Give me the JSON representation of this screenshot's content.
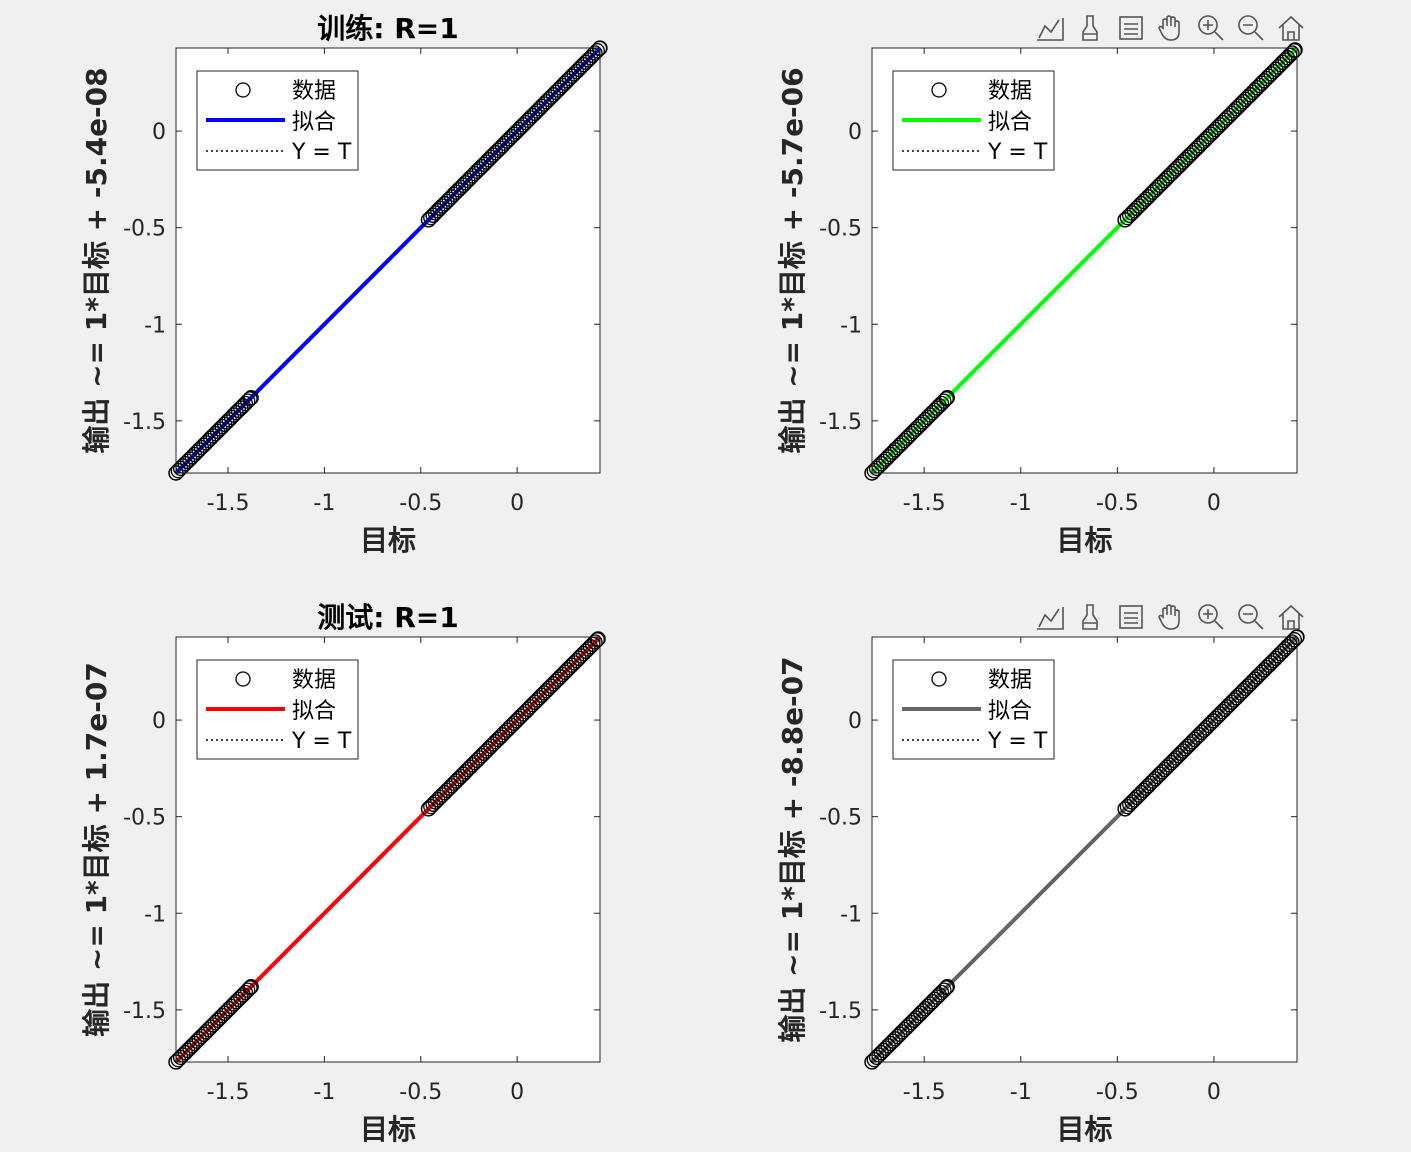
{
  "toolbar": {
    "icons": [
      "data-tips-icon",
      "brush-icon",
      "legend-toggle-icon",
      "pan-hand-icon",
      "zoom-in-icon",
      "zoom-out-icon",
      "home-icon"
    ]
  },
  "chart_data": [
    {
      "type": "scatter",
      "title": "训练: R=1",
      "xlabel": "目标",
      "ylabel": "输出 ~= 1*目标 + -5.4e-08",
      "xlim": [
        -1.77,
        0.43
      ],
      "ylim": [
        -1.77,
        0.43
      ],
      "xticks": [
        -1.5,
        -1,
        -0.5,
        0
      ],
      "xtick_labels": [
        "-1.5",
        "-1",
        "-0.5",
        "0"
      ],
      "yticks": [
        -1.5,
        -1,
        -0.5,
        0
      ],
      "ytick_labels": [
        "-1.5",
        "-1",
        "-0.5",
        "0"
      ],
      "grid": false,
      "legend": {
        "position": "top-left",
        "entries": [
          "数据",
          "拟合",
          "Y = T"
        ]
      },
      "fit": {
        "slope": 1,
        "intercept": -5.4e-08,
        "color": "#0000ff"
      },
      "data_clusters": [
        {
          "x_min": -1.77,
          "x_max": -1.38
        },
        {
          "x_min": -0.46,
          "x_max": 0.43
        }
      ],
      "toolbar": false
    },
    {
      "type": "scatter",
      "title": "",
      "xlabel": "目标",
      "ylabel": "输出 ~= 1*目标 + -5.7e-06",
      "xlim": [
        -1.77,
        0.43
      ],
      "ylim": [
        -1.77,
        0.43
      ],
      "xticks": [
        -1.5,
        -1,
        -0.5,
        0
      ],
      "xtick_labels": [
        "-1.5",
        "-1",
        "-0.5",
        "0"
      ],
      "yticks": [
        -1.5,
        -1,
        -0.5,
        0
      ],
      "ytick_labels": [
        "-1.5",
        "-1",
        "-0.5",
        "0"
      ],
      "grid": false,
      "legend": {
        "position": "top-left",
        "entries": [
          "数据",
          "拟合",
          "Y = T"
        ]
      },
      "fit": {
        "slope": 1,
        "intercept": -5.7e-06,
        "color": "#00ff00"
      },
      "data_clusters": [
        {
          "x_min": -1.77,
          "x_max": -1.38
        },
        {
          "x_min": -0.46,
          "x_max": 0.42
        }
      ],
      "toolbar": true
    },
    {
      "type": "scatter",
      "title": "测试: R=1",
      "xlabel": "目标",
      "ylabel": "输出 ~= 1*目标 + 1.7e-07",
      "xlim": [
        -1.77,
        0.43
      ],
      "ylim": [
        -1.77,
        0.43
      ],
      "xticks": [
        -1.5,
        -1,
        -0.5,
        0
      ],
      "xtick_labels": [
        "-1.5",
        "-1",
        "-0.5",
        "0"
      ],
      "yticks": [
        -1.5,
        -1,
        -0.5,
        0
      ],
      "ytick_labels": [
        "-1.5",
        "-1",
        "-0.5",
        "0"
      ],
      "grid": false,
      "legend": {
        "position": "top-left",
        "entries": [
          "数据",
          "拟合",
          "Y = T"
        ]
      },
      "fit": {
        "slope": 1,
        "intercept": 1.7e-07,
        "color": "#ff0000"
      },
      "data_clusters": [
        {
          "x_min": -1.77,
          "x_max": -1.38
        },
        {
          "x_min": -0.46,
          "x_max": 0.42
        }
      ],
      "toolbar": false
    },
    {
      "type": "scatter",
      "title": "",
      "xlabel": "目标",
      "ylabel": "输出 ~= 1*目标 + -8.8e-07",
      "xlim": [
        -1.77,
        0.43
      ],
      "ylim": [
        -1.77,
        0.43
      ],
      "xticks": [
        -1.5,
        -1,
        -0.5,
        0
      ],
      "xtick_labels": [
        "-1.5",
        "-1",
        "-0.5",
        "0"
      ],
      "yticks": [
        -1.5,
        -1,
        -0.5,
        0
      ],
      "ytick_labels": [
        "-1.5",
        "-1",
        "-0.5",
        "0"
      ],
      "grid": false,
      "legend": {
        "position": "top-left",
        "entries": [
          "数据",
          "拟合",
          "Y = T"
        ]
      },
      "fit": {
        "slope": 1,
        "intercept": -8.8e-07,
        "color": "#666666"
      },
      "data_clusters": [
        {
          "x_min": -1.77,
          "x_max": -1.38
        },
        {
          "x_min": -0.46,
          "x_max": 0.43
        }
      ],
      "toolbar": true
    }
  ]
}
